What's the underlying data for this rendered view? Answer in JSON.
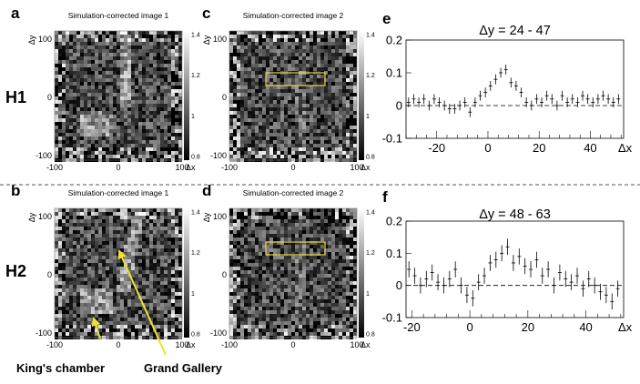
{
  "figure": {
    "row_labels": [
      "H1",
      "H2"
    ],
    "panels": [
      {
        "letter": "a",
        "title": "Simulation-corrected image 1",
        "row": 0,
        "col": 0,
        "rect": null,
        "cold": "kc",
        "streak": "center"
      },
      {
        "letter": "c",
        "title": "Simulation-corrected image 2",
        "row": 0,
        "col": 1,
        "rect": true,
        "cold": null,
        "streak": "center-faint"
      },
      {
        "letter": "b",
        "title": "Simulation-corrected image 1",
        "row": 1,
        "col": 0,
        "rect": null,
        "cold": "kc",
        "streak": "diagonal"
      },
      {
        "letter": "d",
        "title": "Simulation-corrected image 2",
        "row": 1,
        "col": 1,
        "rect": true,
        "cold": null,
        "streak": "center-faint"
      }
    ],
    "image_axes": {
      "x_ticks": [
        "-100",
        "0",
        "100"
      ],
      "y_ticks": [
        "100",
        "0",
        "-100"
      ],
      "x_label": "Δx",
      "y_label": "Δy",
      "colorbar_ticks": [
        "1.4",
        "1.2",
        "1",
        "0.8"
      ]
    },
    "annotations": {
      "kings_chamber": "King's chamber",
      "grand_gallery": "Grand Gallery"
    },
    "colors": {
      "rect": "#e8d44a",
      "arrow": "#f0e030",
      "dashed_sep": "#555555"
    }
  },
  "chart_data": [
    {
      "letter": "e",
      "type": "scatter",
      "title": "Δy = 24 - 47",
      "xlabel": "Δx",
      "ylabel": "",
      "xlim": [
        -32,
        53
      ],
      "ylim": [
        -0.1,
        0.2
      ],
      "x_ticks": [
        -20,
        0,
        20,
        40
      ],
      "y_ticks": [
        -0.1,
        0,
        0.1,
        0.2
      ],
      "y_tick_labels": [
        "-0.1",
        "0",
        "0.1",
        "0.2"
      ],
      "reference_line": 0,
      "series": [
        {
          "x": [
            -31,
            -29,
            -27,
            -25,
            -23,
            -21,
            -19,
            -17,
            -15,
            -13,
            -11,
            -9,
            -7,
            -5,
            -3,
            -1,
            1,
            3,
            5,
            7,
            9,
            11,
            13,
            15,
            17,
            19,
            21,
            23,
            25,
            27,
            29,
            31,
            33,
            35,
            37,
            39,
            41,
            43,
            45,
            47,
            49,
            51
          ],
          "y": [
            0.01,
            0.02,
            0.01,
            0.02,
            0.0,
            0.02,
            0.01,
            0.0,
            -0.01,
            -0.01,
            0.0,
            0.01,
            -0.02,
            0.01,
            0.03,
            0.04,
            0.06,
            0.08,
            0.1,
            0.11,
            0.07,
            0.06,
            0.04,
            0.01,
            0.0,
            0.02,
            0.01,
            0.03,
            0.02,
            0.0,
            0.03,
            0.01,
            0.02,
            0.01,
            0.03,
            0.02,
            0.01,
            0.02,
            0.03,
            0.02,
            0.01,
            0.02
          ],
          "err": 0.015
        }
      ]
    },
    {
      "letter": "f",
      "type": "scatter",
      "title": "Δy = 48 - 63",
      "xlabel": "Δx",
      "ylabel": "",
      "xlim": [
        -22,
        53
      ],
      "ylim": [
        -0.1,
        0.2
      ],
      "x_ticks": [
        -20,
        0,
        20,
        40
      ],
      "y_ticks": [
        -0.1,
        0,
        0.1,
        0.2
      ],
      "y_tick_labels": [
        "-0.1",
        "0",
        "0.1",
        "0.2"
      ],
      "reference_line": 0,
      "series": [
        {
          "x": [
            -21,
            -19,
            -17,
            -15,
            -13,
            -11,
            -9,
            -7,
            -5,
            -3,
            -1,
            1,
            3,
            5,
            7,
            9,
            11,
            13,
            15,
            17,
            19,
            21,
            23,
            25,
            27,
            29,
            31,
            33,
            35,
            37,
            39,
            41,
            43,
            45,
            47,
            49,
            51
          ],
          "y": [
            0.05,
            0.03,
            0.0,
            0.02,
            0.04,
            0.01,
            0.0,
            0.02,
            0.05,
            0.0,
            -0.03,
            -0.04,
            0.01,
            0.03,
            0.07,
            0.08,
            0.1,
            0.12,
            0.07,
            0.09,
            0.06,
            0.05,
            0.08,
            0.03,
            0.05,
            0.0,
            0.04,
            0.02,
            0.01,
            0.03,
            -0.01,
            0.02,
            0.0,
            -0.02,
            -0.03,
            -0.05,
            -0.01
          ],
          "err": 0.025
        }
      ]
    }
  ]
}
